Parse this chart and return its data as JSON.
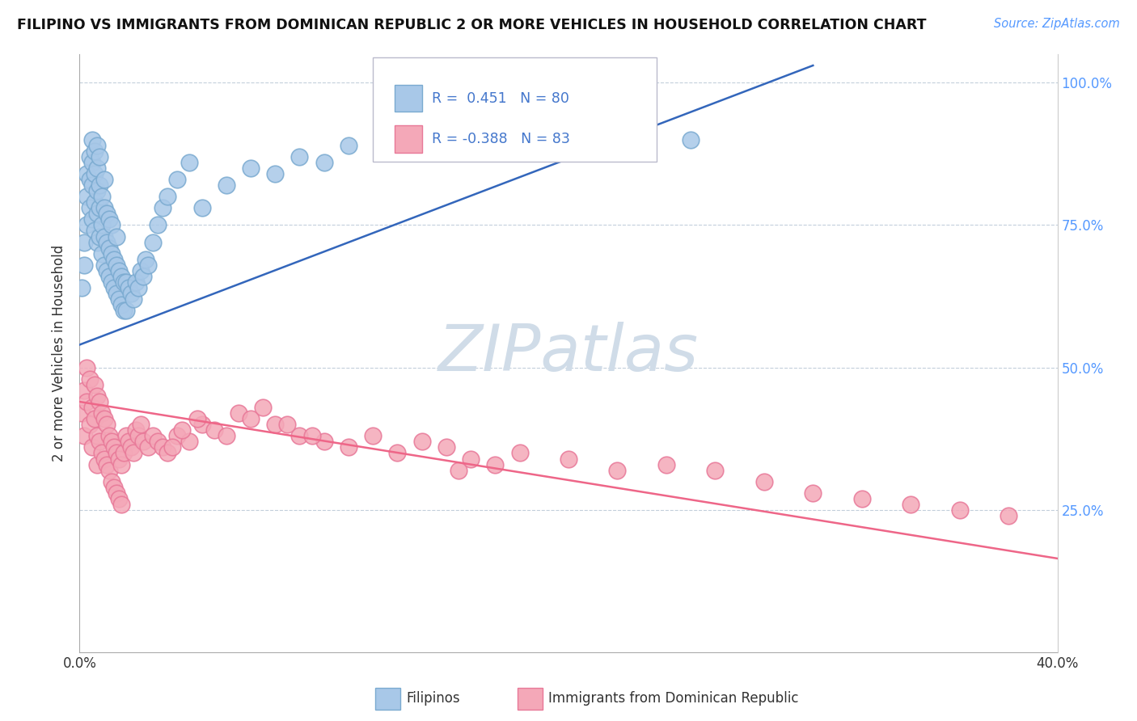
{
  "title": "FILIPINO VS IMMIGRANTS FROM DOMINICAN REPUBLIC 2 OR MORE VEHICLES IN HOUSEHOLD CORRELATION CHART",
  "source": "Source: ZipAtlas.com",
  "ylabel": "2 or more Vehicles in Household",
  "legend1_label": "Filipinos",
  "legend2_label": "Immigrants from Dominican Republic",
  "r1": 0.451,
  "n1": 80,
  "r2": -0.388,
  "n2": 83,
  "blue_color": "#A8C8E8",
  "pink_color": "#F4A8B8",
  "blue_edge": "#7AAAD0",
  "pink_edge": "#E87898",
  "line_blue": "#3366BB",
  "line_pink": "#EE6688",
  "watermark_color": "#D0DCE8",
  "xlim": [
    0.0,
    0.4
  ],
  "ylim": [
    0.0,
    1.05
  ],
  "blue_line_x0": 0.0,
  "blue_line_y0": 0.54,
  "blue_line_x1": 0.3,
  "blue_line_y1": 1.03,
  "pink_line_x0": 0.0,
  "pink_line_y0": 0.44,
  "pink_line_x1": 0.4,
  "pink_line_y1": 0.165,
  "blue_dots_x": [
    0.001,
    0.002,
    0.002,
    0.003,
    0.003,
    0.003,
    0.004,
    0.004,
    0.004,
    0.005,
    0.005,
    0.005,
    0.005,
    0.006,
    0.006,
    0.006,
    0.006,
    0.007,
    0.007,
    0.007,
    0.007,
    0.007,
    0.008,
    0.008,
    0.008,
    0.008,
    0.009,
    0.009,
    0.009,
    0.01,
    0.01,
    0.01,
    0.01,
    0.011,
    0.011,
    0.011,
    0.012,
    0.012,
    0.012,
    0.013,
    0.013,
    0.013,
    0.014,
    0.014,
    0.015,
    0.015,
    0.015,
    0.016,
    0.016,
    0.017,
    0.017,
    0.018,
    0.018,
    0.019,
    0.019,
    0.02,
    0.021,
    0.022,
    0.023,
    0.024,
    0.025,
    0.026,
    0.027,
    0.028,
    0.03,
    0.032,
    0.034,
    0.036,
    0.04,
    0.045,
    0.05,
    0.06,
    0.07,
    0.08,
    0.09,
    0.1,
    0.11,
    0.13,
    0.18,
    0.25
  ],
  "blue_dots_y": [
    0.64,
    0.68,
    0.72,
    0.75,
    0.8,
    0.84,
    0.78,
    0.83,
    0.87,
    0.76,
    0.82,
    0.86,
    0.9,
    0.74,
    0.79,
    0.84,
    0.88,
    0.72,
    0.77,
    0.81,
    0.85,
    0.89,
    0.73,
    0.78,
    0.82,
    0.87,
    0.7,
    0.75,
    0.8,
    0.68,
    0.73,
    0.78,
    0.83,
    0.67,
    0.72,
    0.77,
    0.66,
    0.71,
    0.76,
    0.65,
    0.7,
    0.75,
    0.64,
    0.69,
    0.63,
    0.68,
    0.73,
    0.62,
    0.67,
    0.61,
    0.66,
    0.6,
    0.65,
    0.6,
    0.65,
    0.64,
    0.63,
    0.62,
    0.65,
    0.64,
    0.67,
    0.66,
    0.69,
    0.68,
    0.72,
    0.75,
    0.78,
    0.8,
    0.83,
    0.86,
    0.78,
    0.82,
    0.85,
    0.84,
    0.87,
    0.86,
    0.89,
    0.88,
    0.91,
    0.9
  ],
  "pink_dots_x": [
    0.001,
    0.002,
    0.002,
    0.003,
    0.003,
    0.004,
    0.004,
    0.005,
    0.005,
    0.006,
    0.006,
    0.007,
    0.007,
    0.007,
    0.008,
    0.008,
    0.009,
    0.009,
    0.01,
    0.01,
    0.011,
    0.011,
    0.012,
    0.012,
    0.013,
    0.013,
    0.014,
    0.014,
    0.015,
    0.015,
    0.016,
    0.016,
    0.017,
    0.017,
    0.018,
    0.019,
    0.02,
    0.021,
    0.022,
    0.023,
    0.024,
    0.025,
    0.026,
    0.028,
    0.03,
    0.032,
    0.034,
    0.036,
    0.04,
    0.045,
    0.05,
    0.055,
    0.06,
    0.065,
    0.07,
    0.08,
    0.09,
    0.1,
    0.11,
    0.12,
    0.13,
    0.14,
    0.15,
    0.16,
    0.17,
    0.18,
    0.2,
    0.22,
    0.24,
    0.26,
    0.28,
    0.3,
    0.32,
    0.34,
    0.36,
    0.38,
    0.038,
    0.042,
    0.048,
    0.075,
    0.085,
    0.095,
    0.155
  ],
  "pink_dots_y": [
    0.42,
    0.46,
    0.38,
    0.44,
    0.5,
    0.4,
    0.48,
    0.43,
    0.36,
    0.47,
    0.41,
    0.45,
    0.38,
    0.33,
    0.44,
    0.37,
    0.42,
    0.35,
    0.41,
    0.34,
    0.4,
    0.33,
    0.38,
    0.32,
    0.37,
    0.3,
    0.36,
    0.29,
    0.35,
    0.28,
    0.34,
    0.27,
    0.33,
    0.26,
    0.35,
    0.38,
    0.37,
    0.36,
    0.35,
    0.39,
    0.38,
    0.4,
    0.37,
    0.36,
    0.38,
    0.37,
    0.36,
    0.35,
    0.38,
    0.37,
    0.4,
    0.39,
    0.38,
    0.42,
    0.41,
    0.4,
    0.38,
    0.37,
    0.36,
    0.38,
    0.35,
    0.37,
    0.36,
    0.34,
    0.33,
    0.35,
    0.34,
    0.32,
    0.33,
    0.32,
    0.3,
    0.28,
    0.27,
    0.26,
    0.25,
    0.24,
    0.36,
    0.39,
    0.41,
    0.43,
    0.4,
    0.38,
    0.32
  ]
}
